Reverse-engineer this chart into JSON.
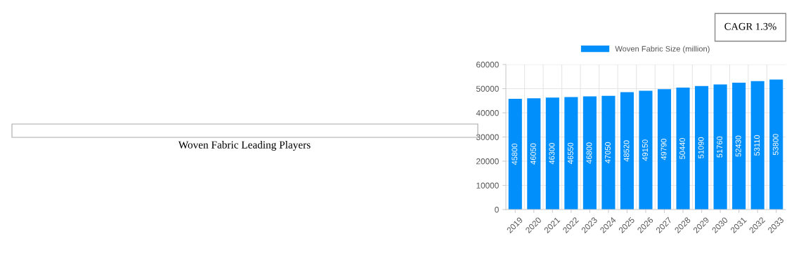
{
  "chart_data": {
    "type": "bar",
    "categories": [
      "2019",
      "2020",
      "2021",
      "2022",
      "2023",
      "2024",
      "2025",
      "2026",
      "2027",
      "2028",
      "2029",
      "2030",
      "2031",
      "2032",
      "2033"
    ],
    "series": [
      {
        "name": "Woven Fabric Size (million)",
        "color": "#008ffb",
        "values": [
          45800,
          46050,
          46300,
          46550,
          46800,
          47050,
          48520,
          49150,
          49790,
          50440,
          51090,
          51760,
          52430,
          53110,
          53800
        ]
      }
    ],
    "ylim": [
      0,
      60000
    ],
    "yticks": [
      0,
      10000,
      20000,
      30000,
      40000,
      50000,
      60000
    ],
    "grid": true,
    "legend": "top",
    "data_labels": true,
    "annotations": [
      "CAGR 1.3%",
      "Woven Fabric Leading Players"
    ]
  }
}
